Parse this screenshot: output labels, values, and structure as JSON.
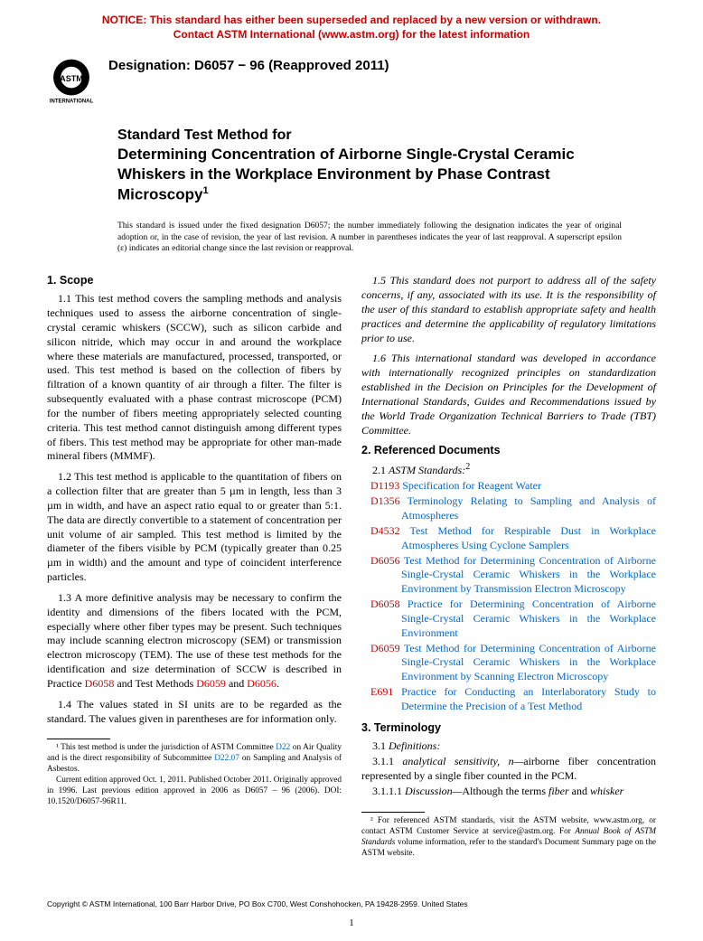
{
  "notice": {
    "line1": "NOTICE: This standard has either been superseded and replaced by a new version or withdrawn.",
    "line2": "Contact ASTM International (www.astm.org) for the latest information",
    "color": "#cc0000"
  },
  "logo": {
    "top_text": "ASTM",
    "bottom_text": "INTERNATIONAL",
    "bg": "#000000",
    "fg": "#ffffff"
  },
  "designation": "Designation: D6057 − 96 (Reapproved 2011)",
  "title": {
    "prefix": "Standard Test Method for",
    "main": "Determining Concentration of Airborne Single-Crystal Ceramic Whiskers in the Workplace Environment by Phase Contrast Microscopy",
    "sup": "1"
  },
  "issuance": "This standard is issued under the fixed designation D6057; the number immediately following the designation indicates the year of original adoption or, in the case of revision, the year of last revision. A number in parentheses indicates the year of last reapproval. A superscript epsilon (ε) indicates an editorial change since the last revision or reapproval.",
  "sections": {
    "scope_head": "1. Scope",
    "s1_1": "1.1 This test method covers the sampling methods and analysis techniques used to assess the airborne concentration of single-crystal ceramic whiskers (SCCW), such as silicon carbide and silicon nitride, which may occur in and around the workplace where these materials are manufactured, processed, transported, or used. This test method is based on the collection of fibers by filtration of a known quantity of air through a filter. The filter is subsequently evaluated with a phase contrast microscope (PCM) for the number of fibers meeting appropriately selected counting criteria. This test method cannot distinguish among different types of fibers. This test method may be appropriate for other man-made mineral fibers (MMMF).",
    "s1_2": "1.2 This test method is applicable to the quantitation of fibers on a collection filter that are greater than 5 µm in length, less than 3 µm in width, and have an aspect ratio equal to or greater than 5:1. The data are directly convertible to a statement of concentration per unit volume of air sampled. This test method is limited by the diameter of the fibers visible by PCM (typically greater than 0.25 µm in width) and the amount and type of coincident interference particles.",
    "s1_3_a": "1.3 A more definitive analysis may be necessary to confirm the identity and dimensions of the fibers located with the PCM, especially where other fiber types may be present. Such techniques may include scanning electron microscopy (SEM) or transmission electron microscopy (TEM). The use of these test methods for the identification and size determination of SCCW is described in Practice ",
    "s1_3_link1": "D6058",
    "s1_3_b": " and Test Methods ",
    "s1_3_link2": "D6059",
    "s1_3_c": " and ",
    "s1_3_link3": "D6056",
    "s1_3_d": ".",
    "s1_4": "1.4 The values stated in SI units are to be regarded as the standard. The values given in parentheses are for information only.",
    "s1_5": "1.5 This standard does not purport to address all of the safety concerns, if any, associated with its use. It is the responsibility of the user of this standard to establish appropriate safety and health practices and determine the applicability of regulatory limitations prior to use.",
    "s1_6": "1.6 This international standard was developed in accordance with internationally recognized principles on standardization established in the Decision on Principles for the Development of International Standards, Guides and Recommendations issued by the World Trade Organization Technical Barriers to Trade (TBT) Committee.",
    "refdocs_head": "2. Referenced Documents",
    "refdocs_sub": "2.1 ",
    "refdocs_sub_it": "ASTM Standards:",
    "refdocs_sup": "2",
    "refs": [
      {
        "code": "D1193",
        "title": "Specification for Reagent Water"
      },
      {
        "code": "D1356",
        "title": "Terminology Relating to Sampling and Analysis of Atmospheres"
      },
      {
        "code": "D4532",
        "title": "Test Method for Respirable Dust in Workplace Atmospheres Using Cyclone Samplers"
      },
      {
        "code": "D6056",
        "title": "Test Method for Determining Concentration of Airborne Single-Crystal Ceramic Whiskers in the Workplace Environment by Transmission Electron Microscopy"
      },
      {
        "code": "D6058",
        "title": "Practice for Determining Concentration of Airborne Single-Crystal Ceramic Whiskers in the Workplace Environment"
      },
      {
        "code": "D6059",
        "title": "Test Method for Determining Concentration of Airborne Single-Crystal Ceramic Whiskers in the Workplace Environment by Scanning Electron Microscopy"
      },
      {
        "code": "E691",
        "title": "Practice for Conducting an Interlaboratory Study to Determine the Precision of a Test Method"
      }
    ],
    "term_head": "3. Terminology",
    "term_31": "3.1 ",
    "term_31_it": "Definitions:",
    "term_311_a": "3.1.1 ",
    "term_311_it": "analytical sensitivity, n—",
    "term_311_b": "airborne fiber concentration represented by a single fiber counted in the PCM.",
    "term_3111_a": "3.1.1.1 ",
    "term_3111_it": "Discussion—",
    "term_3111_b": "Although the terms ",
    "term_3111_it2": "fiber",
    "term_3111_c": " and ",
    "term_3111_it3": "whisker"
  },
  "footnotes": {
    "f1_a": "¹ This test method is under the jurisdiction of ASTM Committee ",
    "f1_link1": "D22",
    "f1_b": " on Air Quality and is the direct responsibility of Subcommittee ",
    "f1_link2": "D22.07",
    "f1_c": " on Sampling and Analysis of Asbestos.",
    "f1_d": "Current edition approved Oct. 1, 2011. Published October 2011. Originally approved in 1996. Last previous edition approved in 2006 as D6057 – 96 (2006). DOI: 10.1520/D6057-96R11.",
    "f2_a": "² For referenced ASTM standards, visit the ASTM website, www.astm.org, or contact ASTM Customer Service at service@astm.org. For ",
    "f2_it": "Annual Book of ASTM Standards",
    "f2_b": " volume information, refer to the standard's Document Summary page on the ASTM website."
  },
  "copyright": "Copyright © ASTM International, 100 Barr Harbor Drive, PO Box C700, West Conshohocken, PA 19428-2959. United States",
  "page_number": "1",
  "colors": {
    "link": "#0066cc",
    "code": "#cc0000"
  }
}
